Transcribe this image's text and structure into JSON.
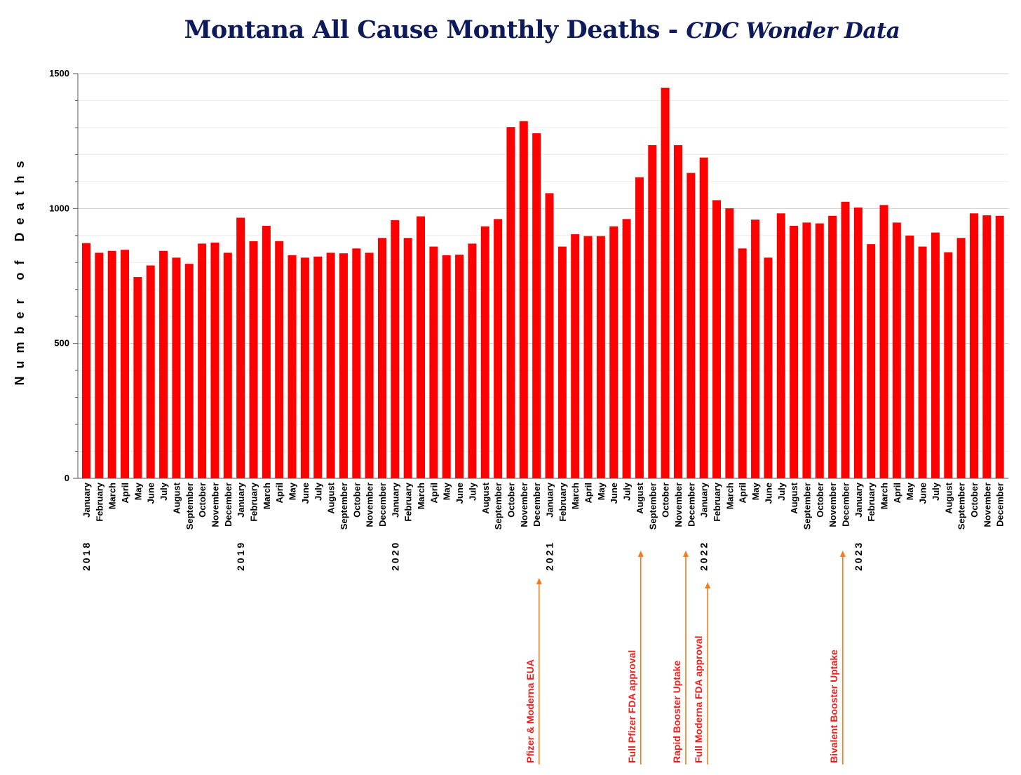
{
  "chart_data": {
    "type": "bar",
    "title": "Montana All Cause Monthly Deaths",
    "title_separator": " - ",
    "subtitle": "CDC Wonder Data",
    "xlabel": "",
    "ylabel": "Number of Deaths",
    "ylim": [
      0,
      1500
    ],
    "yticks": [
      0,
      500,
      1000,
      1500
    ],
    "grid": true,
    "bar_color": "#ff0000",
    "annotation_color": "#e8231f",
    "arrow_color": "#f07d1f",
    "title_color": "#0f1a5a",
    "years": [
      {
        "label": "2018",
        "start_index": 0
      },
      {
        "label": "2019",
        "start_index": 12
      },
      {
        "label": "2020",
        "start_index": 24
      },
      {
        "label": "2021",
        "start_index": 36
      },
      {
        "label": "2022",
        "start_index": 48
      },
      {
        "label": "2023",
        "start_index": 60
      }
    ],
    "categories": [
      "January",
      "February",
      "March",
      "April",
      "May",
      "June",
      "July",
      "August",
      "September",
      "October",
      "November",
      "December",
      "January",
      "February",
      "March",
      "April",
      "May",
      "June",
      "July",
      "August",
      "September",
      "October",
      "November",
      "December",
      "January",
      "February",
      "March",
      "April",
      "May",
      "June",
      "July",
      "August",
      "September",
      "October",
      "November",
      "December",
      "January",
      "February",
      "March",
      "April",
      "May",
      "June",
      "July",
      "August",
      "September",
      "October",
      "November",
      "December",
      "January",
      "February",
      "March",
      "April",
      "May",
      "June",
      "July",
      "August",
      "September",
      "October",
      "November",
      "December",
      "January",
      "February",
      "March",
      "April",
      "May",
      "June",
      "July",
      "August",
      "September",
      "October",
      "November",
      "December"
    ],
    "values": [
      872,
      836,
      843,
      847,
      746,
      789,
      843,
      818,
      795,
      870,
      874,
      836,
      966,
      879,
      936,
      879,
      827,
      818,
      822,
      836,
      834,
      852,
      836,
      891,
      957,
      891,
      971,
      859,
      827,
      829,
      870,
      934,
      961,
      1302,
      1324,
      1279,
      1057,
      859,
      905,
      898,
      898,
      934,
      961,
      1116,
      1235,
      1448,
      1235,
      1132,
      1189,
      1031,
      1001,
      852,
      959,
      818,
      982,
      936,
      948,
      945,
      973,
      1025,
      1004,
      868,
      1013,
      948,
      900,
      859,
      911,
      838,
      891,
      982,
      975,
      973
    ],
    "annotations": [
      {
        "label": "Pfizer & Moderna EUA",
        "index": 35.2
      },
      {
        "label": "Full Pfizer FDA approval",
        "index": 43.1
      },
      {
        "label": "Rapid Booster Uptake",
        "index": 46.6
      },
      {
        "label": "Full Moderna FDA approval",
        "index": 48.3
      },
      {
        "label": "Bivalent Booster Uptake",
        "index": 58.8
      }
    ]
  }
}
